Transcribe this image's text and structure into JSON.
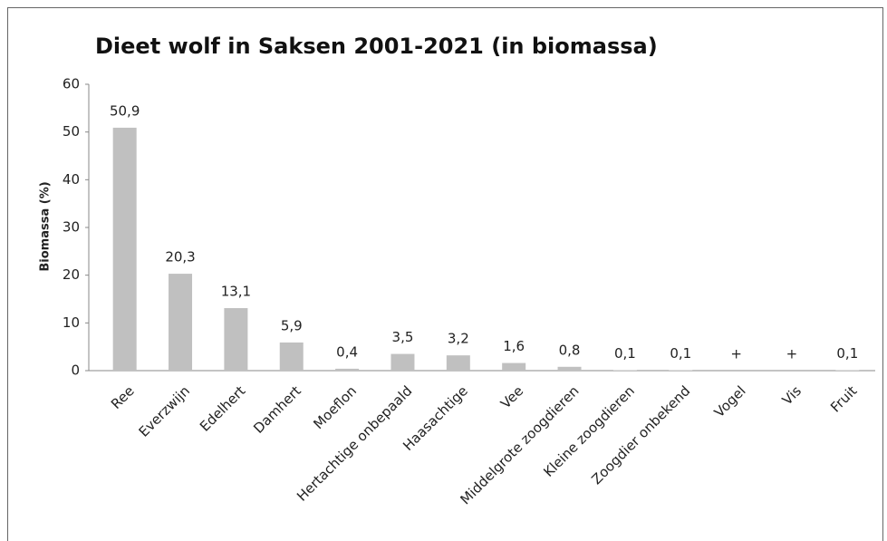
{
  "chart_data": {
    "type": "bar",
    "title": "Dieet wolf in Saksen 2001-2021 (in biomassa)",
    "y_label": "Biomassa (%)",
    "categories": [
      "Ree",
      "Everzwijn",
      "Edelhert",
      "Damhert",
      "Moeflon",
      "Hertachtige onbepaald",
      "Haasachtige",
      "Vee",
      "Middelgrote zoogdieren",
      "Kleine zoogdieren",
      "Zoogdier onbekend",
      "Vogel",
      "Vis",
      "Fruit"
    ],
    "values": [
      50.9,
      20.3,
      13.1,
      5.9,
      0.4,
      3.5,
      3.2,
      1.6,
      0.8,
      0.1,
      0.1,
      null,
      null,
      0.1
    ],
    "value_labels": [
      "50,9",
      "20,3",
      "13,1",
      "5,9",
      "0,4",
      "3,5",
      "3,2",
      "1,6",
      "0,8",
      "0,1",
      "0,1",
      "+",
      "+",
      "0,1"
    ],
    "color": "#c0c0c0",
    "ylim": [
      0,
      60
    ],
    "yticks": [
      0,
      10,
      20,
      30,
      40,
      50,
      60
    ],
    "grid": false
  }
}
